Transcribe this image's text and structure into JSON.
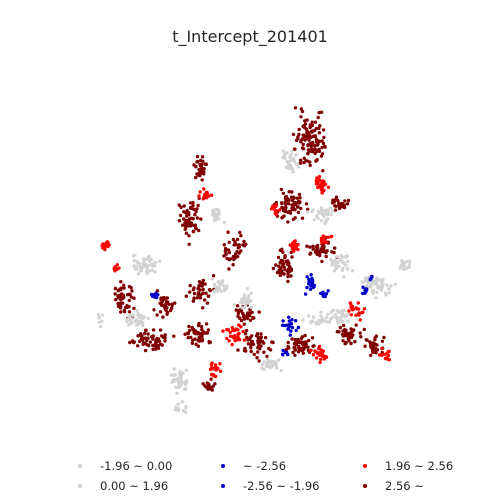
{
  "title": "t_Intercept_201401",
  "legend": {
    "items": [
      {
        "label": "-1.96 ~ 0.00",
        "color": "#d3d3d3"
      },
      {
        "label": "0.00 ~ 1.96",
        "color": "#d3d3d3"
      },
      {
        "label": "~ -2.56",
        "color": "#0000cd"
      },
      {
        "label": "-2.56 ~ -1.96",
        "color": "#0000cd"
      },
      {
        "label": "1.96 ~ 2.56",
        "color": "#ff0000"
      },
      {
        "label": "2.56 ~",
        "color": "#800000"
      }
    ]
  }
}
